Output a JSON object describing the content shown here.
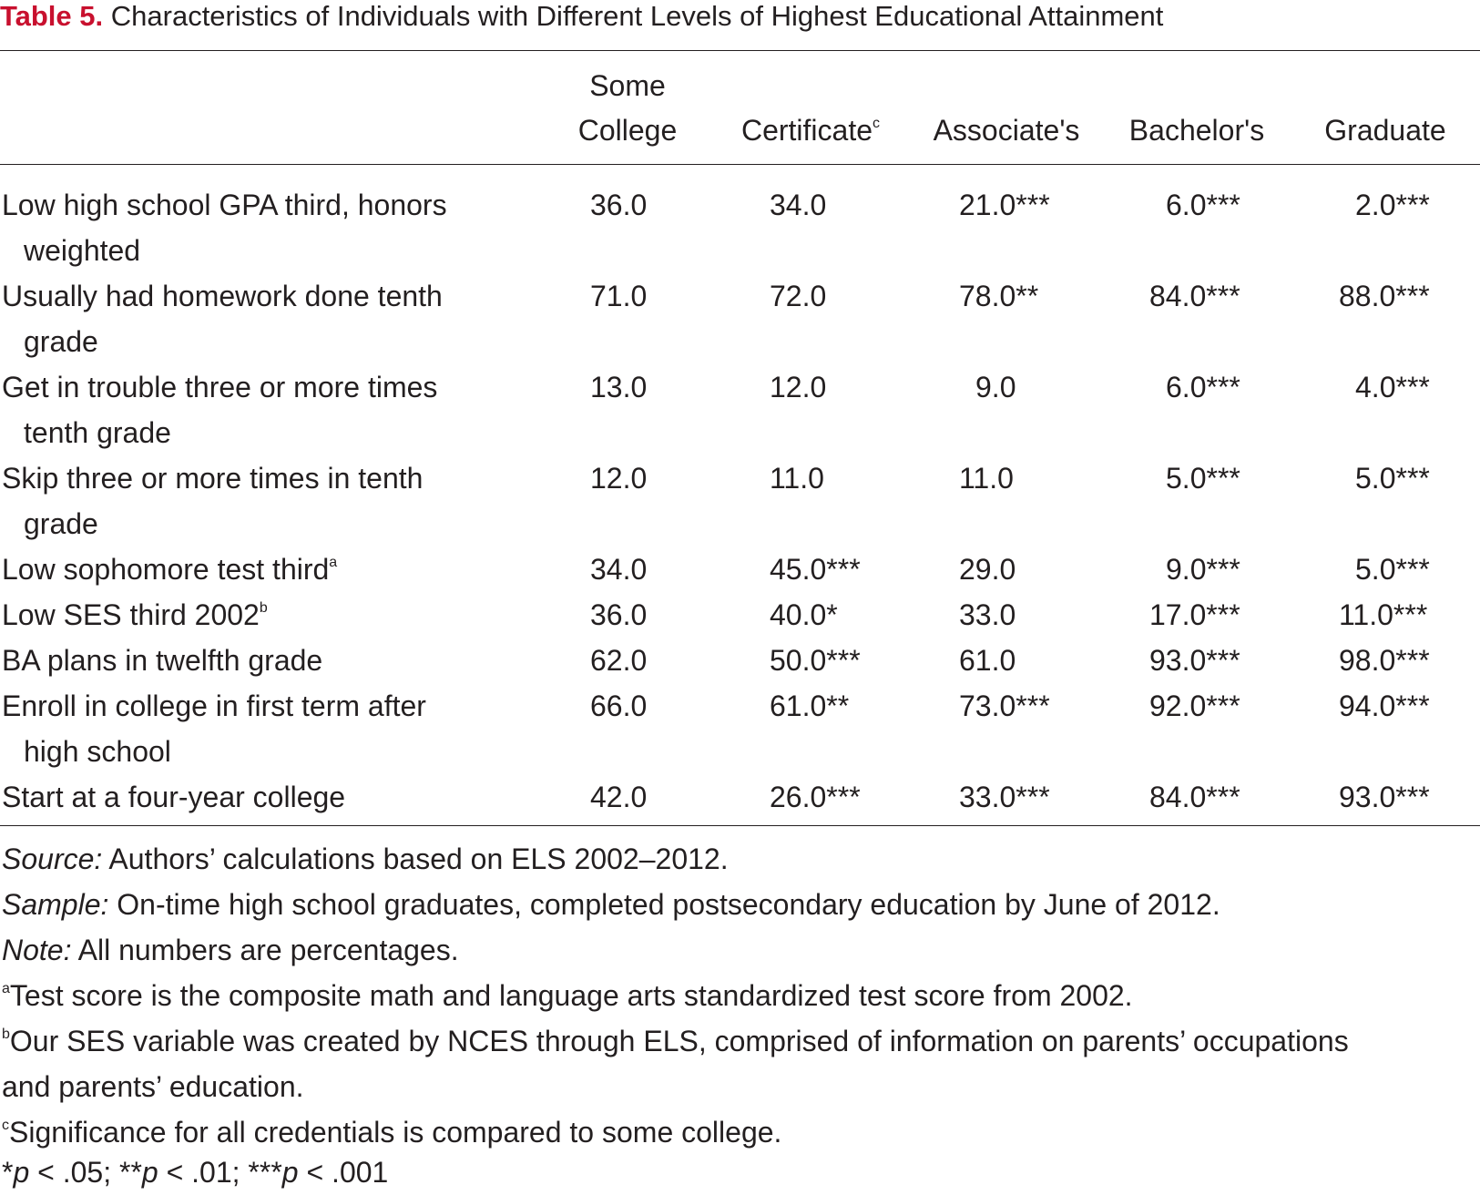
{
  "title": {
    "label": "Table 5.",
    "text": "Characteristics of Individuals with Different Levels of Highest Educational Attainment"
  },
  "columns": [
    {
      "line1": "Some",
      "line2": "College",
      "sup": ""
    },
    {
      "line1": "",
      "line2": "Certificate",
      "sup": "c"
    },
    {
      "line1": "",
      "line2": "Associate's",
      "sup": ""
    },
    {
      "line1": "",
      "line2": "Bachelor's",
      "sup": ""
    },
    {
      "line1": "",
      "line2": "Graduate",
      "sup": ""
    }
  ],
  "rows": [
    {
      "label1": "Low high school GPA third, honors",
      "label2": "weighted",
      "sup": "",
      "values": [
        "36.0",
        "34.0",
        "21.0***",
        "6.0***",
        "2.0***"
      ]
    },
    {
      "label1": "Usually had homework done tenth",
      "label2": "grade",
      "sup": "",
      "values": [
        "71.0",
        "72.0",
        "78.0**",
        "84.0***",
        "88.0***"
      ]
    },
    {
      "label1": "Get in trouble three or more times",
      "label2": "tenth grade",
      "sup": "",
      "values": [
        "13.0",
        "12.0",
        "9.0",
        "6.0***",
        "4.0***"
      ]
    },
    {
      "label1": "Skip three or more times in tenth",
      "label2": "grade",
      "sup": "",
      "values": [
        "12.0",
        "11.0",
        "11.0",
        "5.0***",
        "5.0***"
      ]
    },
    {
      "label1": "Low sophomore test third",
      "label2": "",
      "sup": "a",
      "values": [
        "34.0",
        "45.0***",
        "29.0",
        "9.0***",
        "5.0***"
      ]
    },
    {
      "label1": "Low SES third 2002",
      "label2": "",
      "sup": "b",
      "values": [
        "36.0",
        "40.0*",
        "33.0",
        "17.0***",
        "11.0***"
      ]
    },
    {
      "label1": "BA plans in twelfth grade",
      "label2": "",
      "sup": "",
      "values": [
        "62.0",
        "50.0***",
        "61.0",
        "93.0***",
        "98.0***"
      ]
    },
    {
      "label1": "Enroll in college in first term after",
      "label2": "high school",
      "sup": "",
      "values": [
        "66.0",
        "61.0**",
        "73.0***",
        "92.0***",
        "94.0***"
      ]
    },
    {
      "label1": "Start at a four-year college",
      "label2": "",
      "sup": "",
      "values": [
        "42.0",
        "26.0***",
        "33.0***",
        "84.0***",
        "93.0***"
      ]
    }
  ],
  "notes": {
    "source_label": "Source:",
    "source_text": " Authors’ calculations based on ELS 2002–2012.",
    "sample_label": "Sample:",
    "sample_text": " On-time high school graduates, completed postsecondary education by June of 2012.",
    "note_label": "Note:",
    "note_text": " All numbers are percentages.",
    "fa_mark": "a",
    "fa_text": "Test score is the composite math and language arts standardized test score from 2002.",
    "fb_mark": "b",
    "fb_text1": "Our SES variable was created by NCES through ELS, comprised of information on parents’ occupations",
    "fb_text2": "and parents’ education.",
    "fc_mark": "c",
    "fc_text": "Significance for all credentials is compared to some college.",
    "sig_1": "*",
    "sig_p1": "p",
    "sig_2": " < .05; **",
    "sig_p2": "p",
    "sig_3": " < .01; ***",
    "sig_p3": "p",
    "sig_4": " < .001"
  }
}
